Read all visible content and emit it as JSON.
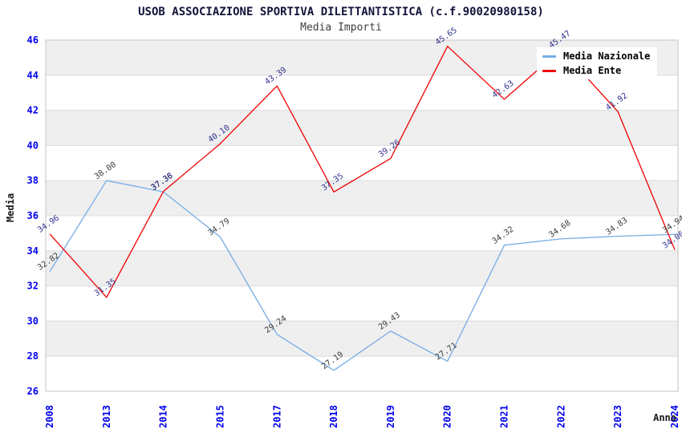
{
  "title": "USOB ASSOCIAZIONE SPORTIVA DILETTANTISTICA (c.f.90020980158)",
  "subtitle": "Media Importi",
  "axes": {
    "y_label": "Media",
    "x_label": "Anno"
  },
  "legend": {
    "items": [
      {
        "label": "Media Nazionale",
        "color": "#76ade6"
      },
      {
        "label": "Media Ente",
        "color": "#f00000"
      }
    ]
  },
  "colors": {
    "tick_label": "#0000ee",
    "grid_line": "#dcdcdc",
    "plot_border": "#c6c6c6",
    "band_fill": "#efefef",
    "background": "#ffffff"
  },
  "chart_data": {
    "type": "line",
    "title": "USOB ASSOCIAZIONE SPORTIVA DILETTANTISTICA (c.f.90020980158)",
    "subtitle": "Media Importi",
    "xlabel": "Anno",
    "ylabel": "Media",
    "categories": [
      "2008",
      "2013",
      "2014",
      "2015",
      "2017",
      "2018",
      "2019",
      "2020",
      "2021",
      "2022",
      "2023",
      "2024"
    ],
    "series": [
      {
        "name": "Media Nazionale",
        "color": "#76ade6",
        "label_color": "#3c3c3c",
        "values": [
          32.82,
          38.0,
          37.36,
          34.79,
          29.24,
          27.19,
          29.43,
          27.71,
          34.32,
          34.68,
          34.83,
          34.94
        ]
      },
      {
        "name": "Media Ente",
        "color": "#f00000",
        "label_color": "#30308f",
        "values": [
          34.96,
          31.35,
          37.38,
          40.1,
          43.39,
          37.35,
          39.26,
          45.65,
          42.63,
          45.47,
          41.92,
          34.06
        ]
      }
    ],
    "ylim": [
      26,
      46
    ],
    "ytick_step": 2,
    "grid": true,
    "alternating_bands": true,
    "legend_position": "top-right",
    "point_label_format": "two-decimals"
  }
}
